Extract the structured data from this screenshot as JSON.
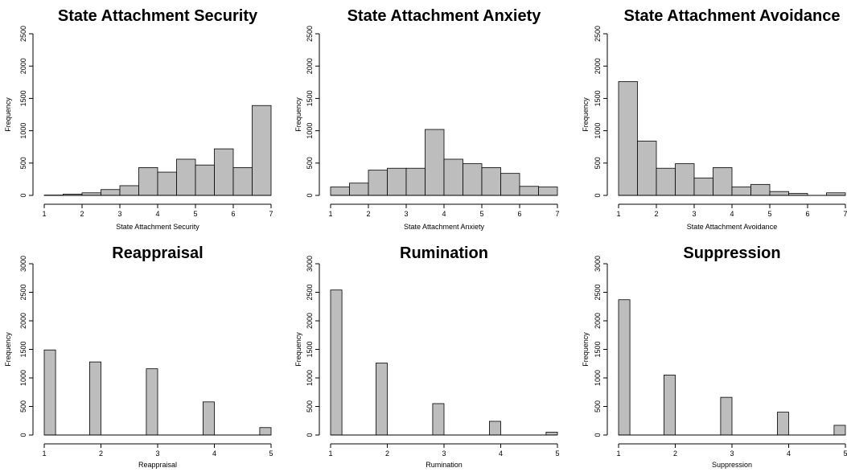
{
  "y_axis_label": "Frequency",
  "chart_data": [
    {
      "type": "bar",
      "title": "State Attachment Security",
      "xlabel": "State Attachment Security",
      "ylabel": "Frequency",
      "x_ticks": [
        1,
        2,
        3,
        4,
        5,
        6,
        7
      ],
      "y_ticks": [
        0,
        500,
        1000,
        1500,
        2000,
        2500
      ],
      "xlim": [
        1,
        7
      ],
      "ylim": [
        0,
        2500
      ],
      "bin_edges": [
        1,
        1.5,
        2,
        2.5,
        3,
        3.5,
        4,
        4.5,
        5,
        5.5,
        6,
        6.5,
        7
      ],
      "values": [
        5,
        20,
        40,
        90,
        150,
        430,
        360,
        560,
        470,
        720,
        430,
        1390
      ]
    },
    {
      "type": "bar",
      "title": "State Attachment Anxiety",
      "xlabel": "State Attachment Anxiety",
      "ylabel": "Frequency",
      "x_ticks": [
        1,
        2,
        3,
        4,
        5,
        6,
        7
      ],
      "y_ticks": [
        0,
        500,
        1000,
        1500,
        2000,
        2500
      ],
      "xlim": [
        1,
        7
      ],
      "ylim": [
        0,
        2500
      ],
      "bin_edges": [
        1,
        1.5,
        2,
        2.5,
        3,
        3.5,
        4,
        4.5,
        5,
        5.5,
        6,
        6.5,
        7
      ],
      "values": [
        130,
        190,
        390,
        420,
        420,
        1020,
        560,
        490,
        430,
        340,
        140,
        130
      ]
    },
    {
      "type": "bar",
      "title": "State Attachment Avoidance",
      "xlabel": "State Attachment Avoidance",
      "ylabel": "Frequency",
      "x_ticks": [
        1,
        2,
        3,
        4,
        5,
        6,
        7
      ],
      "y_ticks": [
        0,
        500,
        1000,
        1500,
        2000,
        2500
      ],
      "xlim": [
        1,
        7
      ],
      "ylim": [
        0,
        2500
      ],
      "bin_edges": [
        1,
        1.5,
        2,
        2.5,
        3,
        3.5,
        4,
        4.5,
        5,
        5.5,
        6,
        6.5,
        7
      ],
      "values": [
        1760,
        840,
        420,
        490,
        270,
        430,
        130,
        170,
        60,
        30,
        0,
        40
      ]
    },
    {
      "type": "bar",
      "title": "Reappraisal",
      "xlabel": "Reappraisal",
      "ylabel": "Frequency",
      "x_ticks": [
        1,
        2,
        3,
        4,
        5
      ],
      "y_ticks": [
        0,
        500,
        1000,
        1500,
        2000,
        2500,
        3000
      ],
      "xlim": [
        1,
        5
      ],
      "ylim": [
        0,
        3000
      ],
      "bin_edges": [
        1,
        1.2,
        1.8,
        2,
        2.8,
        3,
        3.8,
        4,
        4.8,
        5
      ],
      "values": [
        1490,
        0,
        1280,
        0,
        1160,
        0,
        580,
        0,
        130
      ]
    },
    {
      "type": "bar",
      "title": "Rumination",
      "xlabel": "Rumination",
      "ylabel": "Frequency",
      "x_ticks": [
        1,
        2,
        3,
        4,
        5
      ],
      "y_ticks": [
        0,
        500,
        1000,
        1500,
        2000,
        2500,
        3000
      ],
      "xlim": [
        1,
        5
      ],
      "ylim": [
        0,
        3000
      ],
      "bin_edges": [
        1,
        1.2,
        1.8,
        2,
        2.8,
        3,
        3.8,
        4,
        4.8,
        5
      ],
      "values": [
        2540,
        0,
        1260,
        0,
        550,
        0,
        240,
        0,
        50
      ]
    },
    {
      "type": "bar",
      "title": "Suppression",
      "xlabel": "Suppression",
      "ylabel": "Frequency",
      "x_ticks": [
        1,
        2,
        3,
        4,
        5
      ],
      "y_ticks": [
        0,
        500,
        1000,
        1500,
        2000,
        2500,
        3000
      ],
      "xlim": [
        1,
        5
      ],
      "ylim": [
        0,
        3000
      ],
      "bin_edges": [
        1,
        1.2,
        1.8,
        2,
        2.8,
        3,
        3.8,
        4,
        4.8,
        5
      ],
      "values": [
        2370,
        0,
        1050,
        0,
        660,
        0,
        400,
        0,
        170
      ]
    }
  ]
}
